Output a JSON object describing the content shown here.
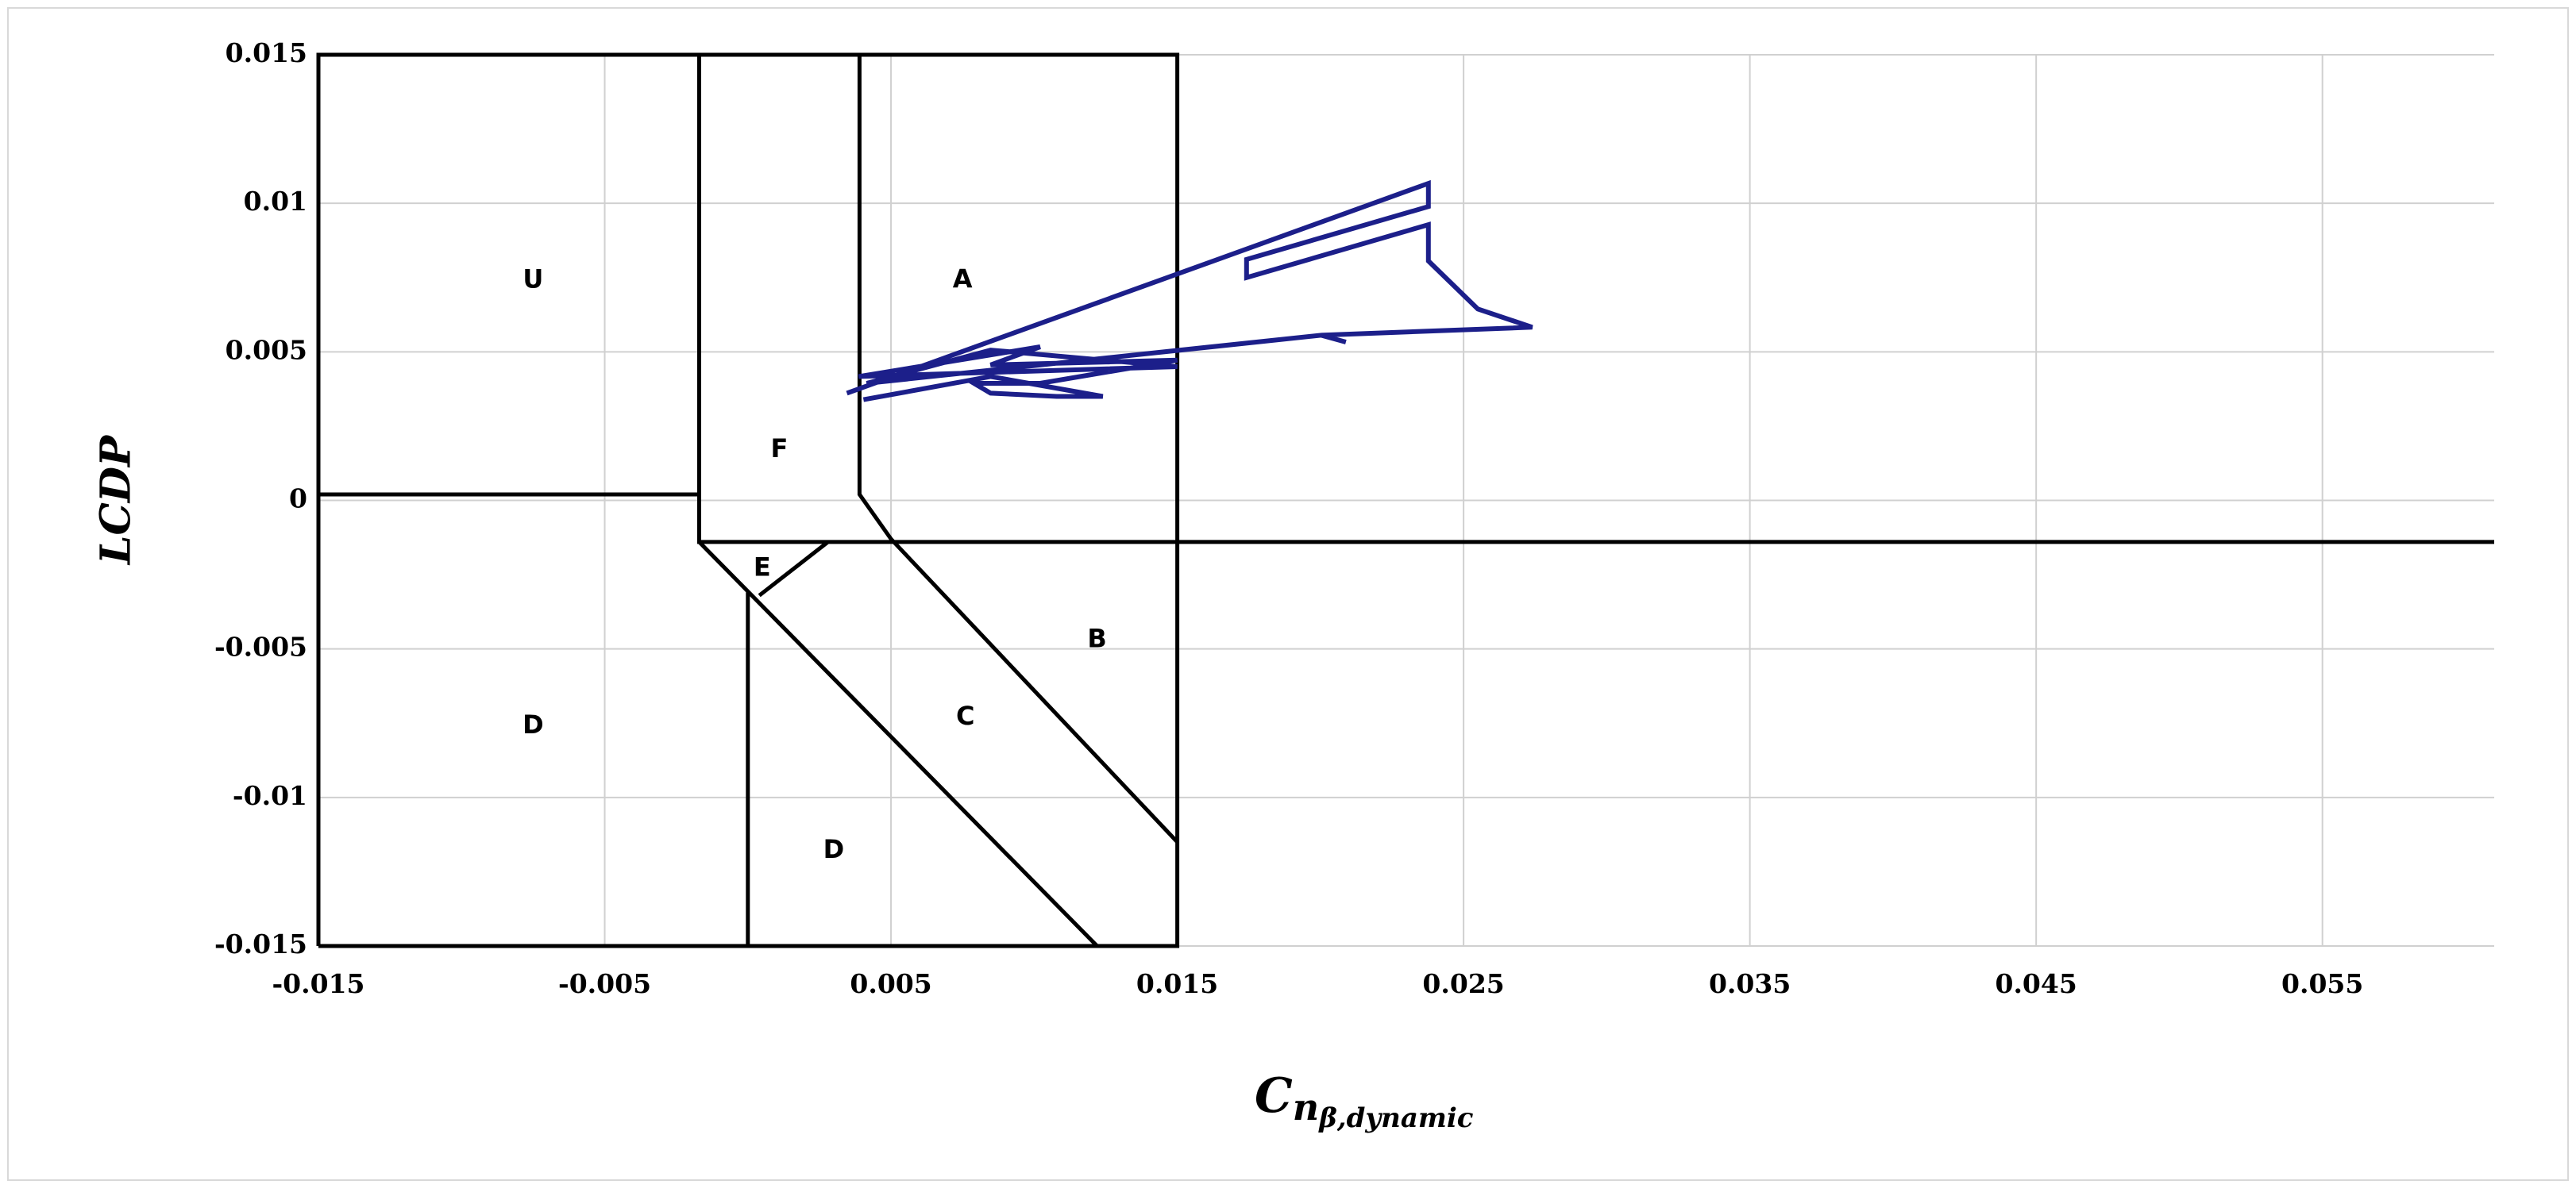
{
  "chart_data": {
    "type": "line",
    "ylabel": "LCDP",
    "xlabel": "C",
    "xlabel_subscript": "n",
    "xlabel_subsubscript": "β,dynamic",
    "xlim": [
      -0.015,
      0.061
    ],
    "ylim": [
      -0.015,
      0.015
    ],
    "xticks": [
      -0.015,
      -0.005,
      0.005,
      0.015,
      0.025,
      0.035,
      0.045,
      0.055
    ],
    "yticks": [
      0.015,
      0.01,
      0.005,
      0,
      -0.005,
      -0.01,
      -0.015
    ],
    "grid": true,
    "series": [
      {
        "color": "#000000",
        "x": [
          -0.015,
          0.015,
          0.015,
          -0.015,
          -0.015,
          null,
          -0.015,
          -0.0017,
          null,
          -0.0017,
          -0.0017,
          0.061,
          null,
          0.0039,
          0.0039,
          0.005,
          0.015,
          null,
          -0.0017,
          0.0122,
          null,
          0.0028,
          0.0004,
          null,
          0,
          0
        ],
        "y": [
          -0.015,
          -0.015,
          0.015,
          0.015,
          -0.015,
          null,
          0.0002,
          0.0002,
          null,
          0.015,
          -0.0014,
          -0.0014,
          null,
          0.015,
          0.0002,
          -0.0013,
          -0.0115,
          null,
          -0.0014,
          -0.015,
          null,
          -0.0014,
          -0.0032,
          null,
          -0.0031,
          -0.015
        ]
      },
      {
        "color": "#1c1f8a",
        "x": [
          0.00346,
          0.02377,
          0.02377,
          0.01742,
          0.01742,
          0.02377,
          0.02377,
          0.0255,
          0.0274,
          0.02002,
          0.02089,
          0.02002,
          0.00415,
          0.00848,
          0.015,
          0.00387,
          0.01021,
          0.00848,
          0.015,
          0.01021,
          0.0079,
          0.00848,
          0.01079,
          0.0124,
          0.00848,
          0.00404
        ],
        "y": [
          0.00361,
          0.01067,
          0.00989,
          0.00811,
          0.0075,
          0.00928,
          0.00806,
          0.00644,
          0.00583,
          0.00556,
          0.00533,
          0.00556,
          0.00394,
          0.00506,
          0.0045,
          0.00417,
          0.00517,
          0.00456,
          0.00472,
          0.00394,
          0.00394,
          0.00361,
          0.0035,
          0.0035,
          0.00417,
          0.00339
        ]
      }
    ],
    "annotations": [
      {
        "text": "U",
        "x": -0.0075,
        "y": 0.0074
      },
      {
        "text": "A",
        "x": 0.0075,
        "y": 0.0074
      },
      {
        "text": "F",
        "x": 0.0011,
        "y": 0.0017
      },
      {
        "text": "E",
        "x": 0.0005,
        "y": -0.0023
      },
      {
        "text": "B",
        "x": 0.0122,
        "y": -0.0047
      },
      {
        "text": "C",
        "x": 0.0076,
        "y": -0.0073
      },
      {
        "text": "D",
        "x": -0.0075,
        "y": -0.0076
      },
      {
        "text": "D",
        "x": 0.003,
        "y": -0.0118
      }
    ]
  }
}
